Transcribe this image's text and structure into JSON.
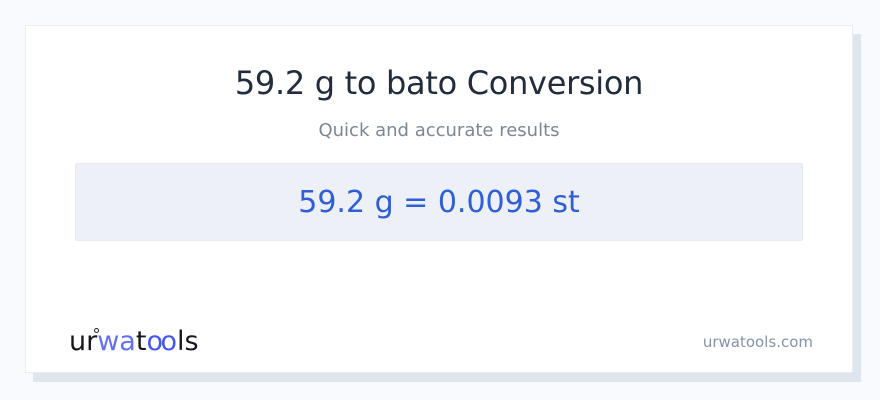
{
  "header": {
    "title": "59.2 g to bato Conversion",
    "subtitle": "Quick and accurate results"
  },
  "result": {
    "display": "59.2 g = 0.0093 st",
    "from_value": "59.2",
    "from_unit": "g",
    "to_value": "0.0093",
    "to_unit": "st"
  },
  "footer": {
    "logo": {
      "ur": "ur",
      "wa": "wa",
      "t": "t",
      "oo": "oo",
      "ls": "ls"
    },
    "domain": "urwatools.com"
  },
  "colors": {
    "page_bg": "#f8fafd",
    "card_shadow": "#dfe5ee",
    "title_navy": "#212c3d",
    "subtitle_gray": "#7b8795",
    "result_box_bg": "#edf1f7",
    "accent_blue": "#2e5fd6",
    "logo_dark": "#17181f",
    "logo_blue": "#4656ee",
    "logo_blue_light": "#6470f4",
    "domain_gray": "#8494a8"
  }
}
